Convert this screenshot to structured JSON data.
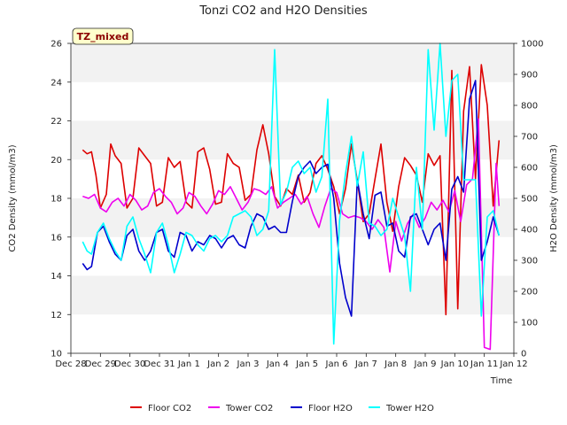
{
  "chart_data": {
    "type": "line",
    "title": "Tonzi CO2 and H2O Densities",
    "xlabel": "Time",
    "ylabel_left": "CO2 Density (mmol/m3)",
    "ylabel_right": "H2O Density (mmol/m3)",
    "annotation": "TZ_mixed",
    "x_ticks": [
      "Dec 28",
      "Dec 29",
      "Dec 30",
      "Dec 31",
      "Jan 1",
      "Jan 2",
      "Jan 3",
      "Jan 4",
      "Jan 5",
      "Jan 6",
      "Jan 7",
      "Jan 8",
      "Jan 9",
      "Jan 10",
      "Jan 11",
      "Jan 12"
    ],
    "xlim": [
      0,
      15
    ],
    "ylim_left": [
      10,
      26
    ],
    "ylim_right": [
      0,
      1000
    ],
    "yticks_left": [
      10,
      12,
      14,
      16,
      18,
      20,
      22,
      24,
      26
    ],
    "yticks_right": [
      0,
      100,
      200,
      300,
      400,
      500,
      600,
      700,
      800,
      900,
      1000
    ],
    "grid": "horizontal bands",
    "legend_position": "bottom",
    "x_units": "days since Dec 28",
    "series": [
      {
        "name": "Floor CO2",
        "axis": "left",
        "color": "#dd0000",
        "x": [
          0.4,
          0.55,
          0.7,
          0.85,
          1.0,
          1.2,
          1.35,
          1.5,
          1.7,
          1.9,
          2.1,
          2.3,
          2.5,
          2.7,
          2.9,
          3.1,
          3.3,
          3.5,
          3.7,
          3.9,
          4.1,
          4.3,
          4.5,
          4.7,
          4.9,
          5.1,
          5.3,
          5.5,
          5.7,
          5.9,
          6.1,
          6.3,
          6.5,
          6.7,
          6.9,
          7.1,
          7.3,
          7.5,
          7.7,
          7.9,
          8.1,
          8.3,
          8.5,
          8.7,
          8.9,
          9.1,
          9.3,
          9.5,
          9.7,
          9.9,
          10.1,
          10.3,
          10.5,
          10.7,
          10.9,
          11.1,
          11.3,
          11.5,
          11.7,
          11.9,
          12.1,
          12.3,
          12.5,
          12.7,
          12.9,
          13.1,
          13.3,
          13.5,
          13.7,
          13.9,
          14.1,
          14.3,
          14.5
        ],
        "y": [
          20.5,
          20.3,
          20.4,
          19.2,
          17.5,
          18.2,
          20.8,
          20.2,
          19.8,
          17.5,
          18.0,
          20.6,
          20.2,
          19.8,
          17.6,
          17.8,
          20.1,
          19.6,
          19.9,
          17.8,
          17.5,
          20.4,
          20.6,
          19.5,
          17.7,
          17.8,
          20.3,
          19.8,
          19.6,
          17.9,
          18.2,
          20.5,
          21.8,
          20.3,
          18.1,
          17.6,
          18.5,
          18.2,
          19.2,
          17.8,
          18.3,
          19.8,
          20.2,
          19.5,
          18.6,
          17.2,
          18.5,
          20.8,
          18.9,
          16.8,
          17.2,
          19.0,
          20.8,
          17.8,
          16.3,
          18.6,
          20.1,
          19.7,
          19.2,
          17.8,
          20.3,
          19.7,
          20.2,
          12.0,
          24.6,
          12.3,
          22.5,
          24.8,
          19.0,
          24.9,
          22.8,
          17.6,
          21.0
        ]
      },
      {
        "name": "Tower CO2",
        "axis": "left",
        "color": "#ee00ee",
        "x": [
          0.4,
          0.6,
          0.8,
          1.0,
          1.2,
          1.4,
          1.6,
          1.8,
          2.0,
          2.2,
          2.4,
          2.6,
          2.8,
          3.0,
          3.2,
          3.4,
          3.6,
          3.8,
          4.0,
          4.2,
          4.4,
          4.6,
          4.8,
          5.0,
          5.2,
          5.4,
          5.6,
          5.8,
          6.0,
          6.2,
          6.4,
          6.6,
          6.8,
          7.0,
          7.2,
          7.4,
          7.6,
          7.8,
          8.0,
          8.2,
          8.4,
          8.6,
          8.8,
          9.0,
          9.2,
          9.4,
          9.6,
          9.8,
          10.0,
          10.2,
          10.4,
          10.6,
          10.8,
          11.0,
          11.2,
          11.4,
          11.6,
          11.8,
          12.0,
          12.2,
          12.4,
          12.6,
          12.8,
          13.0,
          13.2,
          13.4,
          13.6,
          13.8,
          14.0,
          14.2,
          14.4,
          14.5
        ],
        "y": [
          18.1,
          18.0,
          18.2,
          17.5,
          17.3,
          17.8,
          18.0,
          17.6,
          18.2,
          17.9,
          17.4,
          17.6,
          18.3,
          18.5,
          18.1,
          17.8,
          17.2,
          17.5,
          18.3,
          18.1,
          17.6,
          17.2,
          17.7,
          18.4,
          18.2,
          18.6,
          18.0,
          17.4,
          17.8,
          18.5,
          18.4,
          18.2,
          18.6,
          17.5,
          17.8,
          18.0,
          18.2,
          17.7,
          18.1,
          17.2,
          16.5,
          17.6,
          18.5,
          18.3,
          17.2,
          17.0,
          17.1,
          17.0,
          16.8,
          16.4,
          16.9,
          16.5,
          14.2,
          16.8,
          15.8,
          16.7,
          17.2,
          16.5,
          17.0,
          17.8,
          17.4,
          17.9,
          17.3,
          18.4,
          16.8,
          18.7,
          19.0,
          22.1,
          10.3,
          10.2,
          19.8,
          17.6
        ]
      },
      {
        "name": "Floor H2O",
        "axis": "right",
        "color": "#0000cc",
        "x": [
          0.4,
          0.55,
          0.7,
          0.9,
          1.1,
          1.3,
          1.5,
          1.7,
          1.9,
          2.1,
          2.3,
          2.5,
          2.7,
          2.9,
          3.1,
          3.3,
          3.5,
          3.7,
          3.9,
          4.1,
          4.3,
          4.5,
          4.7,
          4.9,
          5.1,
          5.3,
          5.5,
          5.7,
          5.9,
          6.1,
          6.3,
          6.5,
          6.7,
          6.9,
          7.1,
          7.3,
          7.5,
          7.7,
          7.9,
          8.1,
          8.3,
          8.5,
          8.7,
          8.9,
          9.1,
          9.3,
          9.5,
          9.7,
          9.9,
          10.1,
          10.3,
          10.5,
          10.7,
          10.9,
          11.1,
          11.3,
          11.5,
          11.7,
          11.9,
          12.1,
          12.3,
          12.5,
          12.7,
          12.9,
          13.1,
          13.3,
          13.5,
          13.7,
          13.9,
          14.1,
          14.3,
          14.5
        ],
        "y": [
          290,
          270,
          280,
          390,
          410,
          360,
          320,
          300,
          380,
          400,
          330,
          300,
          330,
          390,
          400,
          330,
          310,
          390,
          380,
          330,
          360,
          350,
          380,
          370,
          340,
          370,
          380,
          350,
          340,
          410,
          450,
          440,
          400,
          410,
          390,
          390,
          490,
          570,
          600,
          620,
          580,
          600,
          610,
          500,
          290,
          180,
          120,
          560,
          450,
          370,
          510,
          520,
          410,
          420,
          330,
          310,
          440,
          450,
          400,
          350,
          400,
          420,
          300,
          530,
          570,
          520,
          820,
          880,
          300,
          360,
          440,
          380
        ]
      },
      {
        "name": "Tower H2O",
        "axis": "right",
        "color": "#00ffff",
        "x": [
          0.4,
          0.55,
          0.7,
          0.9,
          1.1,
          1.3,
          1.5,
          1.7,
          1.9,
          2.1,
          2.3,
          2.5,
          2.7,
          2.9,
          3.1,
          3.3,
          3.5,
          3.7,
          3.9,
          4.1,
          4.3,
          4.5,
          4.7,
          4.9,
          5.1,
          5.3,
          5.5,
          5.7,
          5.9,
          6.1,
          6.3,
          6.5,
          6.7,
          6.9,
          7.1,
          7.3,
          7.5,
          7.7,
          7.9,
          8.1,
          8.3,
          8.5,
          8.7,
          8.9,
          9.1,
          9.3,
          9.5,
          9.7,
          9.9,
          10.1,
          10.3,
          10.5,
          10.7,
          10.9,
          11.1,
          11.3,
          11.5,
          11.7,
          11.9,
          12.1,
          12.3,
          12.5,
          12.7,
          12.9,
          13.1,
          13.3,
          13.5,
          13.7,
          13.9,
          14.1,
          14.3,
          14.5
        ],
        "y": [
          360,
          330,
          320,
          390,
          420,
          370,
          330,
          300,
          410,
          440,
          370,
          320,
          260,
          390,
          420,
          350,
          260,
          320,
          390,
          380,
          350,
          330,
          370,
          380,
          360,
          380,
          440,
          450,
          460,
          440,
          380,
          400,
          460,
          980,
          480,
          520,
          600,
          620,
          580,
          600,
          520,
          570,
          820,
          30,
          430,
          580,
          700,
          540,
          650,
          420,
          410,
          380,
          400,
          500,
          440,
          380,
          200,
          600,
          400,
          980,
          720,
          1000,
          700,
          880,
          900,
          560,
          560,
          560,
          120,
          440,
          460,
          380
        ]
      }
    ]
  }
}
